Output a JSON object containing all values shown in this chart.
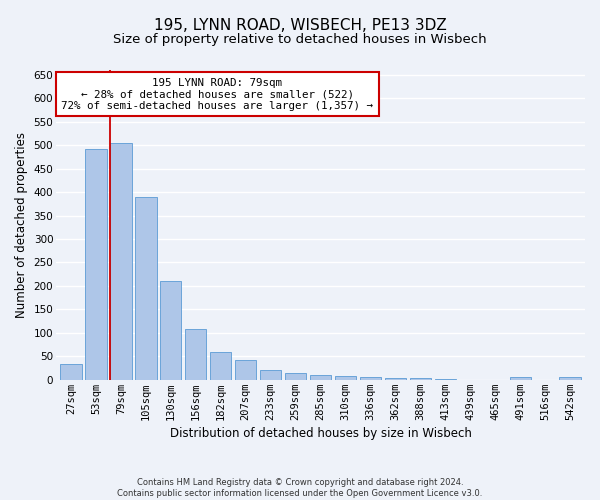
{
  "title": "195, LYNN ROAD, WISBECH, PE13 3DZ",
  "subtitle": "Size of property relative to detached houses in Wisbech",
  "xlabel": "Distribution of detached houses by size in Wisbech",
  "ylabel": "Number of detached properties",
  "bar_values": [
    33,
    492,
    505,
    390,
    210,
    108,
    60,
    42,
    21,
    14,
    10,
    8,
    5,
    4,
    3,
    2,
    0,
    0,
    5,
    0,
    5
  ],
  "categories": [
    "27sqm",
    "53sqm",
    "79sqm",
    "105sqm",
    "130sqm",
    "156sqm",
    "182sqm",
    "207sqm",
    "233sqm",
    "259sqm",
    "285sqm",
    "310sqm",
    "336sqm",
    "362sqm",
    "388sqm",
    "413sqm",
    "439sqm",
    "465sqm",
    "491sqm",
    "516sqm",
    "542sqm"
  ],
  "bar_color": "#aec6e8",
  "bar_edge_color": "#5b9bd5",
  "highlight_bar_index": 2,
  "highlight_line_color": "#cc0000",
  "annotation_text": "195 LYNN ROAD: 79sqm\n← 28% of detached houses are smaller (522)\n72% of semi-detached houses are larger (1,357) →",
  "annotation_box_color": "#ffffff",
  "annotation_border_color": "#cc0000",
  "ylim": [
    0,
    660
  ],
  "yticks": [
    0,
    50,
    100,
    150,
    200,
    250,
    300,
    350,
    400,
    450,
    500,
    550,
    600,
    650
  ],
  "footer_line1": "Contains HM Land Registry data © Crown copyright and database right 2024.",
  "footer_line2": "Contains public sector information licensed under the Open Government Licence v3.0.",
  "background_color": "#eef2f9",
  "grid_color": "#ffffff",
  "title_fontsize": 11,
  "subtitle_fontsize": 9.5,
  "axis_label_fontsize": 8.5,
  "tick_fontsize": 7.5,
  "footer_fontsize": 6,
  "annotation_fontsize": 7.8
}
